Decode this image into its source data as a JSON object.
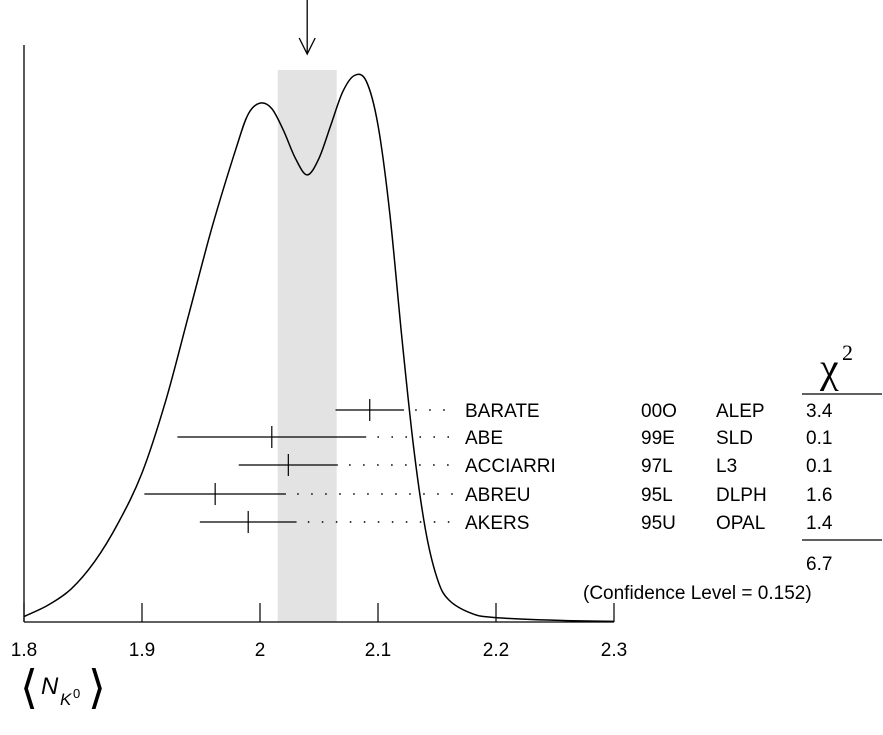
{
  "chart_data": {
    "type": "ideogram",
    "x_ticks": [
      "1.8",
      "1.9",
      "2",
      "2.1",
      "2.2",
      "2.3"
    ],
    "xlim": [
      1.8,
      2.3
    ],
    "xlabel": {
      "main": "N",
      "sub": "K",
      "sup": "0"
    },
    "weighted_average_band": [
      2.015,
      2.065
    ],
    "weighted_average_arrow": 2.04,
    "ideogram_curve": [
      [
        1.8,
        0.01
      ],
      [
        1.82,
        0.03
      ],
      [
        1.84,
        0.06
      ],
      [
        1.86,
        0.11
      ],
      [
        1.88,
        0.18
      ],
      [
        1.9,
        0.27
      ],
      [
        1.92,
        0.4
      ],
      [
        1.94,
        0.56
      ],
      [
        1.96,
        0.72
      ],
      [
        1.98,
        0.86
      ],
      [
        1.99,
        0.92
      ],
      [
        2.0,
        0.94
      ],
      [
        2.01,
        0.93
      ],
      [
        2.02,
        0.89
      ],
      [
        2.03,
        0.84
      ],
      [
        2.04,
        0.81
      ],
      [
        2.05,
        0.84
      ],
      [
        2.06,
        0.9
      ],
      [
        2.07,
        0.96
      ],
      [
        2.08,
        0.99
      ],
      [
        2.09,
        0.98
      ],
      [
        2.1,
        0.9
      ],
      [
        2.11,
        0.74
      ],
      [
        2.12,
        0.52
      ],
      [
        2.13,
        0.32
      ],
      [
        2.14,
        0.17
      ],
      [
        2.15,
        0.08
      ],
      [
        2.16,
        0.04
      ],
      [
        2.18,
        0.015
      ],
      [
        2.2,
        0.008
      ],
      [
        2.25,
        0.003
      ],
      [
        2.3,
        0.001
      ]
    ],
    "chi2_header": "χ",
    "chi2_header_sup": "2",
    "measurements": [
      {
        "author": "BARATE",
        "ref": "00O",
        "exp": "ALEP",
        "chi2": "3.4",
        "value": 2.093,
        "error": 0.029
      },
      {
        "author": "ABE",
        "ref": "99E",
        "exp": "SLD",
        "chi2": "0.1",
        "value": 2.01,
        "error": 0.08
      },
      {
        "author": "ACCIARRI",
        "ref": "97L",
        "exp": "L3",
        "chi2": "0.1",
        "value": 2.024,
        "error": 0.042
      },
      {
        "author": "ABREU",
        "ref": "95L",
        "exp": "DLPH",
        "chi2": "1.6",
        "value": 1.962,
        "error": 0.06
      },
      {
        "author": "AKERS",
        "ref": "95U",
        "exp": "OPAL",
        "chi2": "1.4",
        "value": 1.99,
        "error": 0.041
      }
    ],
    "chi2_total": "6.7",
    "confidence_level": "(Confidence Level = 0.152)"
  }
}
